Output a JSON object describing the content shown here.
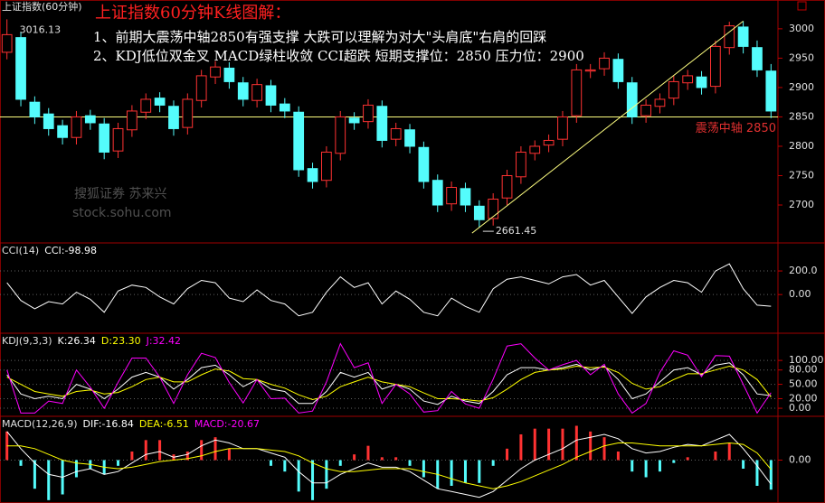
{
  "chart_data": [
    {
      "type": "candlestick",
      "title": "上证指数(60分钟)",
      "headline": "上证指数60分钟K线图解：",
      "notes": [
        "1、前期大震荡中轴2850有强支撑 大跌可以理解为对大\"头肩底\"右肩的回踩",
        "2、KDJ低位双金叉 MACD绿柱收敛 CCI超跌 短期支撑位：2850 压力位：2900"
      ],
      "watermark": [
        "搜狐证券 苏来兴",
        "stock.sohu.com"
      ],
      "high_label": "3016.13",
      "low_label": "2661.45",
      "open": [
        2960,
        2985,
        2875,
        2855,
        2835,
        2815,
        2852,
        2838,
        2792,
        2828,
        2858,
        2882,
        2868,
        2832,
        2878,
        2918,
        2933,
        2908,
        2878,
        2903,
        2872,
        2858,
        2762,
        2742,
        2788,
        2848,
        2842,
        2868,
        2812,
        2828,
        2798,
        2742,
        2702,
        2728,
        2698,
        2677,
        2712,
        2748,
        2788,
        2802,
        2812,
        2852,
        2928,
        2932,
        2948,
        2908,
        2852,
        2868,
        2882,
        2908,
        2918,
        2902,
        2968,
        3003,
        2968,
        2928
      ],
      "high": [
        3016.13,
        2995,
        2885,
        2865,
        2845,
        2860,
        2862,
        2848,
        2840,
        2870,
        2890,
        2892,
        2878,
        2890,
        2930,
        2945,
        2943,
        2918,
        2915,
        2913,
        2882,
        2868,
        2772,
        2800,
        2860,
        2858,
        2880,
        2878,
        2840,
        2838,
        2808,
        2752,
        2740,
        2738,
        2708,
        2720,
        2760,
        2800,
        2810,
        2820,
        2860,
        2940,
        2940,
        2960,
        2958,
        2918,
        2880,
        2890,
        2920,
        2930,
        2928,
        2980,
        3012,
        3013,
        2980,
        2940
      ],
      "low": [
        2948,
        2868,
        2838,
        2818,
        2803,
        2803,
        2828,
        2778,
        2780,
        2816,
        2846,
        2858,
        2818,
        2820,
        2866,
        2906,
        2898,
        2868,
        2866,
        2858,
        2848,
        2748,
        2728,
        2730,
        2776,
        2828,
        2830,
        2798,
        2800,
        2788,
        2728,
        2688,
        2690,
        2688,
        2661.45,
        2665,
        2700,
        2736,
        2776,
        2790,
        2800,
        2840,
        2916,
        2920,
        2898,
        2838,
        2840,
        2856,
        2870,
        2896,
        2888,
        2890,
        2956,
        2958,
        2918,
        2848
      ],
      "close": [
        2990,
        2880,
        2850,
        2830,
        2815,
        2850,
        2840,
        2790,
        2830,
        2860,
        2880,
        2870,
        2830,
        2880,
        2920,
        2935,
        2910,
        2880,
        2905,
        2870,
        2860,
        2760,
        2740,
        2790,
        2850,
        2840,
        2870,
        2810,
        2830,
        2800,
        2740,
        2700,
        2730,
        2700,
        2675,
        2710,
        2750,
        2790,
        2800,
        2810,
        2850,
        2930,
        2930,
        2950,
        2910,
        2850,
        2870,
        2880,
        2910,
        2920,
        2900,
        2970,
        3005,
        2970,
        2930,
        2860
      ],
      "up_color": "#ff3232",
      "down_color": "#54fcfc",
      "reference_line": {
        "value": 2850,
        "label": "震荡中轴 2850",
        "color": "#ffff80"
      },
      "ylim": [
        2637,
        3049
      ],
      "yticks": [
        2700,
        2750,
        2800,
        2850,
        2900,
        2950,
        3000
      ]
    },
    {
      "type": "line",
      "title": "CCI(14)",
      "series": [
        {
          "name": "CCI:-98.98",
          "color": "#ffffff",
          "values": [
            100,
            -50,
            -120,
            -60,
            -80,
            20,
            -40,
            -150,
            30,
            80,
            60,
            -20,
            -80,
            50,
            120,
            100,
            -30,
            -60,
            40,
            -50,
            -80,
            -180,
            -150,
            20,
            150,
            60,
            100,
            -80,
            30,
            -40,
            -150,
            -180,
            -30,
            -100,
            -150,
            50,
            130,
            150,
            120,
            90,
            150,
            170,
            80,
            120,
            -20,
            -160,
            -20,
            60,
            120,
            100,
            20,
            200,
            260,
            50,
            -90,
            -98.98
          ]
        }
      ],
      "ylim": [
        -320,
        430
      ],
      "yticks": [
        {
          "value": 200,
          "label": "200.0"
        },
        {
          "value": 0,
          "label": "0.00"
        }
      ]
    },
    {
      "type": "line",
      "title": "KDJ(9,3,3)",
      "series": [
        {
          "name": "K:26.34",
          "color": "#ffffff",
          "values": [
            70,
            30,
            20,
            25,
            20,
            50,
            40,
            20,
            40,
            65,
            75,
            65,
            40,
            60,
            85,
            90,
            70,
            45,
            60,
            40,
            35,
            10,
            10,
            35,
            75,
            65,
            75,
            40,
            50,
            40,
            15,
            8,
            25,
            15,
            10,
            35,
            70,
            85,
            85,
            80,
            85,
            92,
            80,
            88,
            60,
            20,
            30,
            55,
            80,
            85,
            70,
            90,
            95,
            70,
            30,
            26.34
          ]
        },
        {
          "name": "D:23.30",
          "color": "#ffff00",
          "values": [
            65,
            50,
            35,
            30,
            25,
            35,
            38,
            30,
            33,
            45,
            60,
            65,
            55,
            55,
            70,
            82,
            78,
            62,
            60,
            50,
            42,
            28,
            18,
            25,
            45,
            55,
            65,
            55,
            50,
            45,
            32,
            20,
            20,
            18,
            15,
            22,
            40,
            60,
            75,
            80,
            82,
            88,
            85,
            86,
            75,
            52,
            40,
            45,
            60,
            72,
            72,
            80,
            88,
            80,
            60,
            23.3
          ]
        },
        {
          "name": "J:32.42",
          "color": "#ff00ff",
          "values": [
            80,
            -10,
            -10,
            15,
            10,
            80,
            44,
            0,
            54,
            105,
            105,
            65,
            10,
            70,
            115,
            106,
            54,
            11,
            60,
            20,
            21,
            -10,
            -6,
            55,
            135,
            85,
            95,
            10,
            50,
            30,
            -8,
            -5,
            35,
            9,
            0,
            61,
            130,
            135,
            105,
            80,
            91,
            100,
            70,
            92,
            30,
            -10,
            10,
            75,
            120,
            111,
            66,
            110,
            109,
            50,
            -10,
            32.42
          ]
        }
      ],
      "ylim": [
        -15,
        155
      ],
      "yticks": [
        {
          "value": 100,
          "label": "100.00"
        },
        {
          "value": 80,
          "label": "80.00"
        },
        {
          "value": 50,
          "label": "50.00"
        },
        {
          "value": 20,
          "label": "20.00"
        },
        {
          "value": 0,
          "label": "0.00"
        }
      ]
    },
    {
      "type": "macd",
      "title": "MACD(12,26,9)",
      "series": [
        {
          "name": "DIF:-16.84",
          "color": "#ffffff",
          "values": [
            20,
            8,
            -2,
            -10,
            -12,
            -8,
            -6,
            -10,
            -8,
            -2,
            4,
            6,
            2,
            4,
            10,
            14,
            12,
            8,
            8,
            5,
            2,
            -8,
            -16,
            -16,
            -10,
            -6,
            -2,
            -5,
            -5,
            -8,
            -14,
            -20,
            -22,
            -24,
            -26,
            -22,
            -14,
            -6,
            0,
            4,
            8,
            14,
            16,
            18,
            15,
            8,
            5,
            6,
            9,
            11,
            10,
            14,
            18,
            8,
            -4,
            -16.84
          ]
        },
        {
          "name": "DEA:-6.51",
          "color": "#ffff00",
          "values": [
            10,
            10,
            8,
            4,
            0,
            -2,
            -3,
            -5,
            -6,
            -5,
            -3,
            -1,
            0,
            1,
            3,
            6,
            8,
            8,
            8,
            7,
            6,
            3,
            -2,
            -6,
            -8,
            -8,
            -7,
            -6,
            -6,
            -6,
            -8,
            -10,
            -13,
            -16,
            -18,
            -20,
            -18,
            -15,
            -11,
            -7,
            -3,
            2,
            6,
            10,
            12,
            12,
            11,
            10,
            10,
            10,
            10,
            11,
            12,
            11,
            5,
            -6.51
          ]
        },
        {
          "name": "MACD:-20.67",
          "color": "#ff00ff",
          "style": "bar",
          "up_color": "#ff3232",
          "down_color": "#54fcfc",
          "values": [
            20,
            -4,
            -20,
            -28,
            -24,
            -12,
            -6,
            -10,
            -4,
            6,
            14,
            14,
            4,
            6,
            14,
            16,
            8,
            0,
            0,
            -4,
            -8,
            -22,
            -28,
            -20,
            -4,
            4,
            10,
            2,
            2,
            -4,
            -12,
            -20,
            -18,
            -16,
            -16,
            -4,
            8,
            18,
            22,
            22,
            22,
            24,
            20,
            16,
            6,
            -8,
            -12,
            -8,
            -2,
            2,
            0,
            6,
            12,
            -6,
            -18,
            -20.67
          ]
        }
      ],
      "ylim": [
        -30,
        30
      ],
      "yticks": [
        {
          "value": 0,
          "label": "0.00"
        }
      ]
    }
  ]
}
